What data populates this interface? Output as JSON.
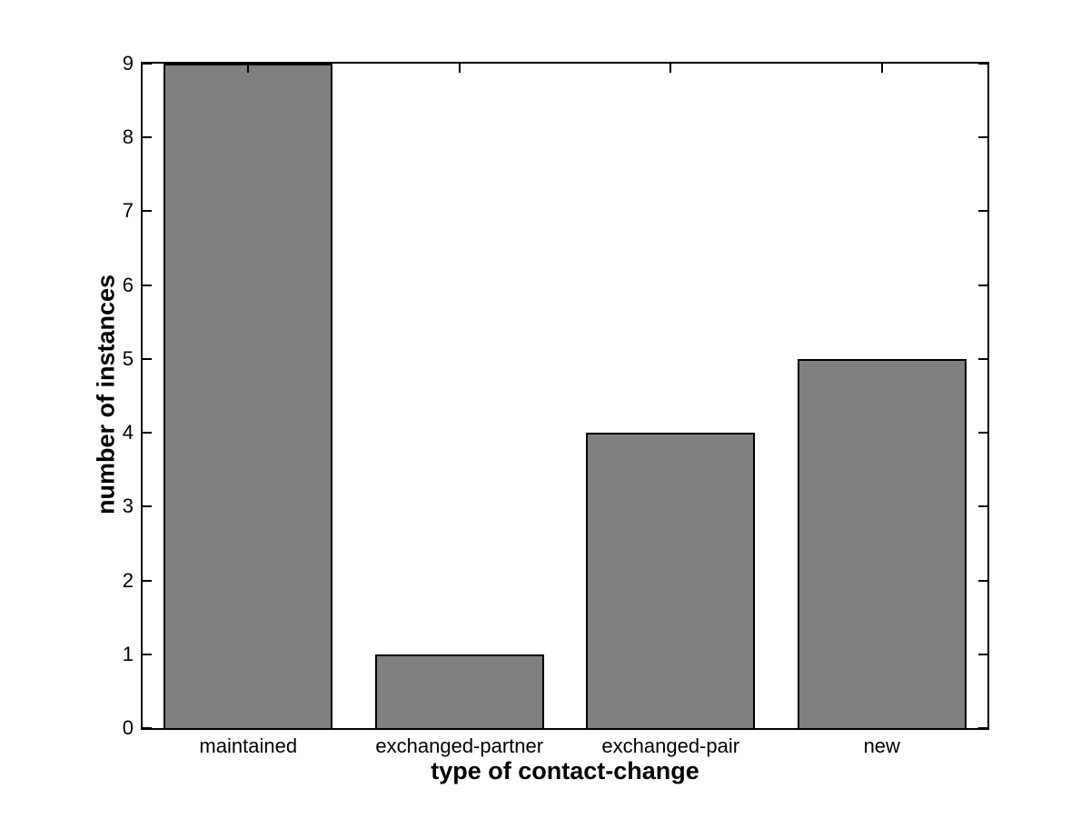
{
  "chart_data": {
    "type": "bar",
    "title": "",
    "categories": [
      "maintained",
      "exchanged-partner",
      "exchanged-pair",
      "new"
    ],
    "values": [
      9,
      1,
      4,
      5
    ],
    "xlabel": "type of contact-change",
    "ylabel": "number of instances",
    "ylim": [
      0,
      9
    ],
    "yticks": [
      0,
      1,
      2,
      3,
      4,
      5,
      6,
      7,
      8,
      9
    ],
    "grid": "off",
    "legend": "none",
    "bar_width_fraction": 0.8,
    "bar_fill_color": "#7f7f7f",
    "bar_edge_color": "#000000",
    "axis_color": "#000000",
    "background_color": "#ffffff",
    "tick_direction": "in"
  }
}
